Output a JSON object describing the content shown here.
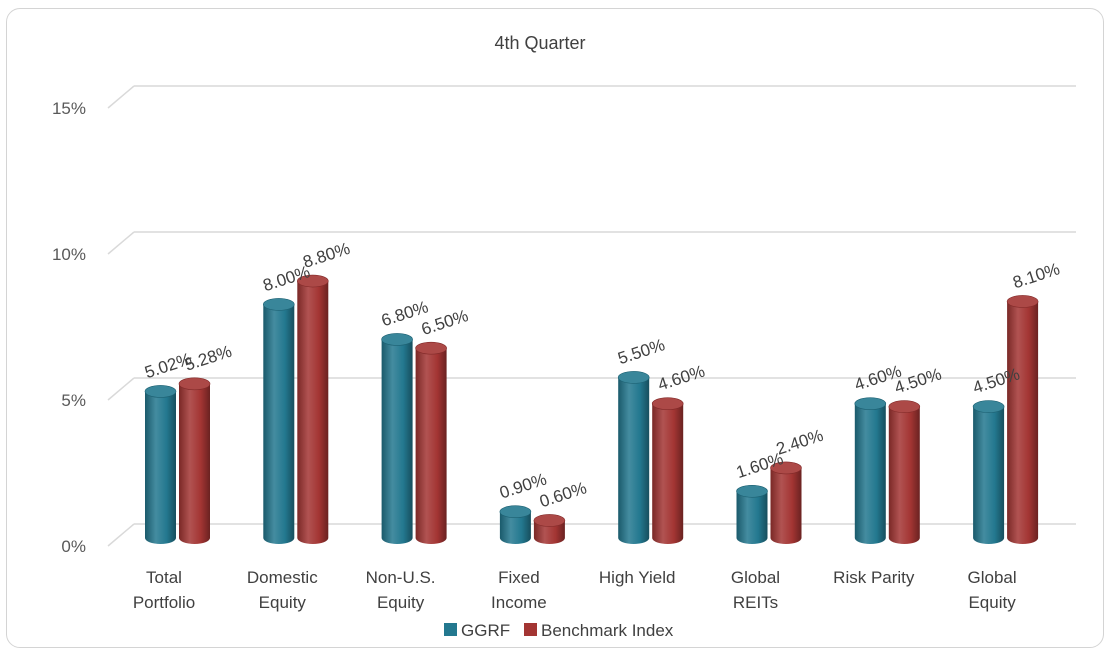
{
  "chart_data": {
    "type": "bar",
    "title": "4th Quarter",
    "categories": [
      [
        "Total",
        "Portfolio"
      ],
      [
        "Domestic",
        "Equity"
      ],
      [
        "Non-U.S.",
        "Equity"
      ],
      [
        "Fixed",
        "Income"
      ],
      [
        "High Yield"
      ],
      [
        "Global",
        "REITs"
      ],
      [
        "Risk Parity"
      ],
      [
        "Global",
        "Equity"
      ]
    ],
    "series": [
      {
        "name": "GGRF",
        "color": "#23788f",
        "values": [
          5.02,
          8.0,
          6.8,
          0.9,
          5.5,
          1.6,
          4.6,
          4.5
        ],
        "labels": [
          "5.02%",
          "8.00%",
          "6.80%",
          "0.90%",
          "5.50%",
          "1.60%",
          "4.60%",
          "4.50%"
        ]
      },
      {
        "name": "Benchmark Index",
        "color": "#a33533",
        "values": [
          5.28,
          8.8,
          6.5,
          0.6,
          4.6,
          2.4,
          4.5,
          8.1
        ],
        "labels": [
          "5.28%",
          "8.80%",
          "6.50%",
          "0.60%",
          "4.60%",
          "2.40%",
          "4.50%",
          "8.10%"
        ]
      }
    ],
    "yticks": [
      {
        "value": 0,
        "label": "0%"
      },
      {
        "value": 5,
        "label": "5%"
      },
      {
        "value": 10,
        "label": "10%"
      },
      {
        "value": 15,
        "label": "15%"
      }
    ],
    "ylim": [
      0,
      15
    ],
    "grid": true,
    "legend": "bottom"
  }
}
